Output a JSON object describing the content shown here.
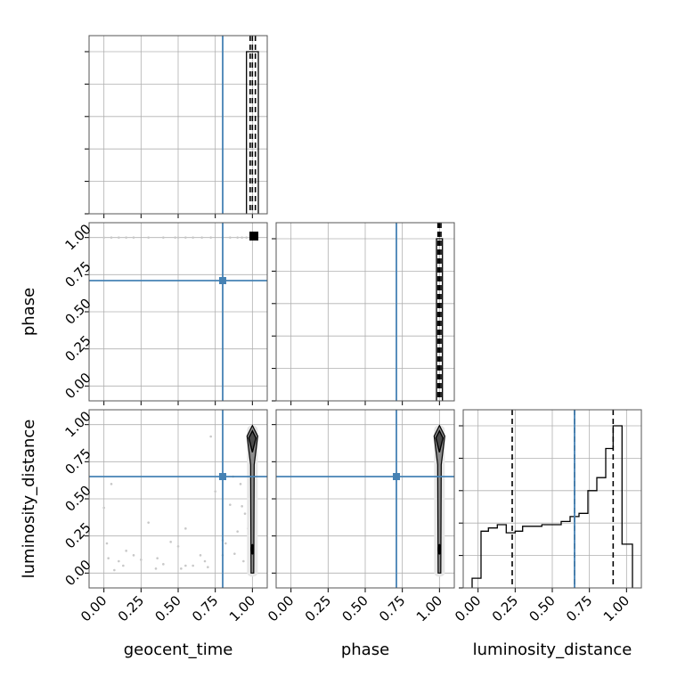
{
  "chart_data": {
    "type": "corner",
    "parameters": [
      "geocent_time",
      "phase",
      "luminosity_distance"
    ],
    "axis_labels": {
      "x": [
        "geocent_time",
        "phase",
        "luminosity_distance"
      ],
      "y": [
        "",
        "phase",
        "luminosity_distance"
      ]
    },
    "ticks": [
      0.0,
      0.25,
      0.5,
      0.75,
      1.0
    ],
    "tick_labels": [
      "0.00",
      "0.25",
      "0.50",
      "0.75",
      "1.00"
    ],
    "range": [
      -0.1,
      1.1
    ],
    "grid": true,
    "truths": {
      "geocent_time": 0.8,
      "phase": 0.71,
      "luminosity_distance": 0.65
    },
    "truth_color": "#4682b4",
    "diagonal": {
      "geocent_time": {
        "step": [
          [
            0.96,
            0
          ],
          [
            0.96,
            1
          ],
          [
            1.04,
            1
          ],
          [
            1.04,
            0
          ]
        ],
        "quantiles": [
          0.985,
          1.0,
          1.02
        ]
      },
      "phase": {
        "step": [
          [
            0.98,
            0
          ],
          [
            0.98,
            1
          ],
          [
            1.02,
            1
          ],
          [
            1.02,
            0
          ]
        ],
        "quantiles": [
          0.99,
          1.0,
          1.01
        ]
      },
      "luminosity_distance": {
        "step": [
          [
            -0.04,
            0.0
          ],
          [
            -0.04,
            0.06
          ],
          [
            0.02,
            0.06
          ],
          [
            0.02,
            0.35
          ],
          [
            0.07,
            0.35
          ],
          [
            0.07,
            0.37
          ],
          [
            0.13,
            0.37
          ],
          [
            0.13,
            0.39
          ],
          [
            0.19,
            0.39
          ],
          [
            0.19,
            0.34
          ],
          [
            0.25,
            0.34
          ],
          [
            0.25,
            0.35
          ],
          [
            0.3,
            0.35
          ],
          [
            0.3,
            0.38
          ],
          [
            0.43,
            0.38
          ],
          [
            0.43,
            0.39
          ],
          [
            0.56,
            0.39
          ],
          [
            0.56,
            0.41
          ],
          [
            0.62,
            0.41
          ],
          [
            0.62,
            0.44
          ],
          [
            0.68,
            0.44
          ],
          [
            0.68,
            0.46
          ],
          [
            0.74,
            0.46
          ],
          [
            0.74,
            0.6
          ],
          [
            0.8,
            0.6
          ],
          [
            0.8,
            0.68
          ],
          [
            0.86,
            0.68
          ],
          [
            0.86,
            0.86
          ],
          [
            0.91,
            0.86
          ],
          [
            0.91,
            1.0
          ],
          [
            0.97,
            1.0
          ],
          [
            0.97,
            0.27
          ],
          [
            1.04,
            0.27
          ],
          [
            1.04,
            0.0
          ]
        ],
        "quantiles": [
          0.23,
          0.65,
          0.91
        ]
      }
    },
    "scatter": {
      "phase_vs_geocent_time": {
        "x": [
          0.0,
          0.05,
          0.1,
          0.15,
          0.2,
          0.3,
          0.4,
          0.48,
          0.5,
          0.55,
          0.6,
          0.66,
          0.72,
          0.8,
          0.85,
          0.9,
          0.93,
          0.96
        ],
        "y": [
          1.0,
          1.0,
          1.0,
          1.0,
          1.0,
          1.0,
          1.0,
          1.0,
          1.0,
          1.0,
          1.0,
          1.0,
          1.0,
          1.0,
          1.0,
          1.0,
          1.0,
          1.0
        ]
      },
      "luminosity_distance_vs_geocent_time": {
        "x": [
          0.0,
          0.02,
          0.05,
          0.07,
          0.1,
          0.13,
          0.15,
          0.2,
          0.25,
          0.3,
          0.35,
          0.4,
          0.45,
          0.5,
          0.52,
          0.55,
          0.6,
          0.65,
          0.7,
          0.72,
          0.75,
          0.8,
          0.82,
          0.85,
          0.87,
          0.9,
          0.92,
          0.95,
          0.03,
          0.36,
          0.55,
          0.68,
          0.8,
          0.88,
          0.93,
          0.97,
          0.94
        ],
        "y": [
          0.44,
          0.2,
          0.6,
          0.02,
          0.08,
          0.05,
          0.15,
          0.12,
          0.09,
          0.34,
          0.03,
          0.06,
          0.21,
          0.18,
          0.03,
          0.3,
          0.05,
          0.12,
          0.04,
          0.92,
          0.55,
          0.12,
          0.2,
          0.46,
          0.65,
          0.28,
          0.6,
          0.4,
          0.1,
          0.1,
          0.05,
          0.08,
          0.22,
          0.13,
          0.45,
          0.3,
          0.08
        ]
      },
      "luminosity_distance_vs_phase": {
        "x": [
          0.985,
          0.99,
          0.995,
          1.005,
          0.99
        ],
        "y": [
          0.18,
          0.12,
          0.26,
          0.62,
          0.44
        ]
      }
    }
  }
}
